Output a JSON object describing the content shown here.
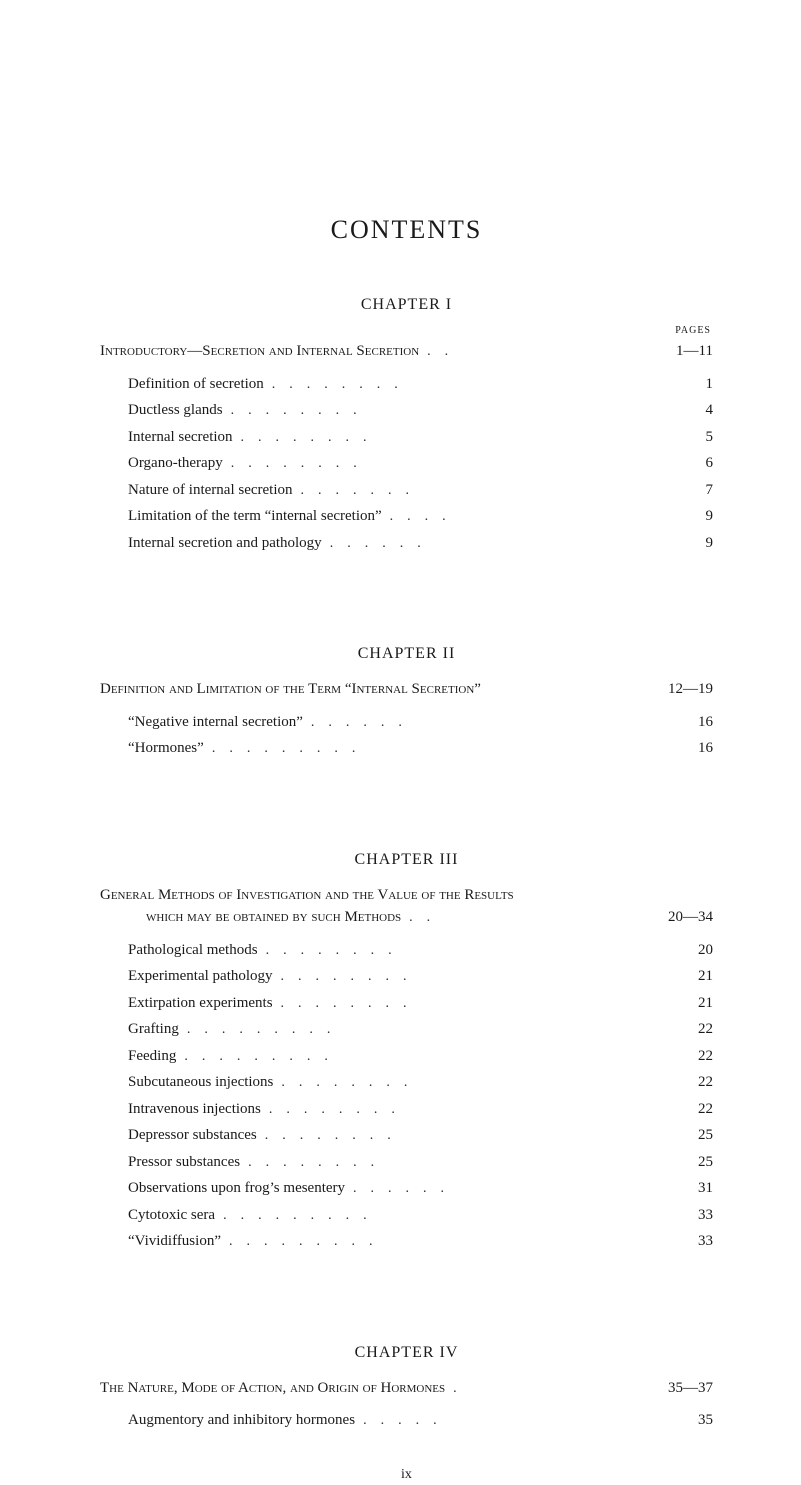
{
  "title": "CONTENTS",
  "pages_label": "PAGES",
  "footer": "ix",
  "chapters": [
    {
      "heading": "CHAPTER I",
      "section_title": "Introductory—Secretion and Internal Secretion",
      "page_range": "1—11",
      "entries": [
        {
          "label": "Definition of secretion",
          "page": "1"
        },
        {
          "label": "Ductless glands",
          "page": "4"
        },
        {
          "label": "Internal secretion",
          "page": "5"
        },
        {
          "label": "Organo-therapy",
          "page": "6"
        },
        {
          "label": "Nature of internal secretion",
          "page": "7"
        },
        {
          "label": "Limitation of the term “internal secretion”",
          "page": "9"
        },
        {
          "label": "Internal secretion and pathology",
          "page": "9"
        }
      ]
    },
    {
      "heading": "CHAPTER II",
      "section_title": "Definition and Limitation of the Term “Internal Secretion”",
      "page_range": "12—19",
      "entries": [
        {
          "label": "“Negative internal secretion”",
          "page": "16"
        },
        {
          "label": "“Hormones”",
          "page": "16"
        }
      ]
    },
    {
      "heading": "CHAPTER III",
      "section_title": "General Methods of Investigation and the Value of the Results",
      "sub_title": "which may be obtained by such Methods",
      "page_range": "20—34",
      "entries": [
        {
          "label": "Pathological methods",
          "page": "20"
        },
        {
          "label": "Experimental pathology",
          "page": "21"
        },
        {
          "label": "Extirpation experiments",
          "page": "21"
        },
        {
          "label": "Grafting",
          "page": "22"
        },
        {
          "label": "Feeding",
          "page": "22"
        },
        {
          "label": "Subcutaneous injections",
          "page": "22"
        },
        {
          "label": "Intravenous injections",
          "page": "22"
        },
        {
          "label": "Depressor substances",
          "page": "25"
        },
        {
          "label": "Pressor substances",
          "page": "25"
        },
        {
          "label": "Observations upon frog’s mesentery",
          "page": "31"
        },
        {
          "label": "Cytotoxic sera",
          "page": "33"
        },
        {
          "label": "“Vividiffusion”",
          "page": "33"
        }
      ]
    },
    {
      "heading": "CHAPTER IV",
      "section_title": "The Nature, Mode of Action, and Origin of Hormones",
      "page_range": "35—37",
      "entries": [
        {
          "label": "Augmentory and inhibitory hormones",
          "page": "35"
        }
      ]
    }
  ]
}
